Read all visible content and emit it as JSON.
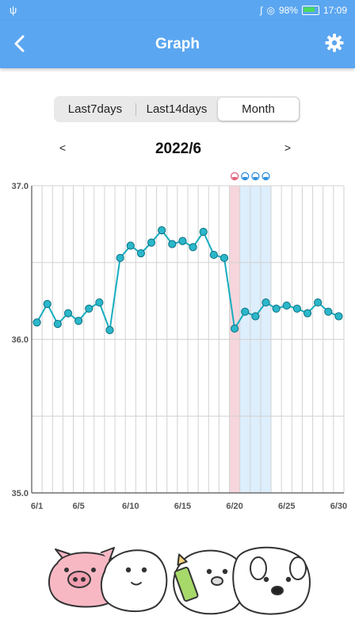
{
  "status_bar": {
    "usb_icon": "usb-icon",
    "battery": "98%",
    "time": "17:09"
  },
  "app_bar": {
    "title": "Graph",
    "back_icon": "back-arrow-icon",
    "settings_icon": "gear-icon"
  },
  "range_selector": {
    "options": [
      "Last7days",
      "Last14days",
      "Month"
    ],
    "selected": "Month"
  },
  "month_nav": {
    "prev": "<",
    "label": "2022/6",
    "next": ">"
  },
  "colors": {
    "line": "#18aebf",
    "marker_fill": "#2bb7ca",
    "period_band": "#f6d6dc",
    "fertile_band": "#ddeefc",
    "accent": "#5ba6f0"
  },
  "chart_data": {
    "type": "line",
    "x": [
      1,
      2,
      3,
      4,
      5,
      6,
      7,
      8,
      9,
      10,
      11,
      12,
      13,
      14,
      15,
      16,
      17,
      18,
      19,
      20,
      21,
      22,
      23,
      24,
      25,
      26,
      27,
      28,
      29,
      30
    ],
    "values": [
      36.11,
      36.23,
      36.1,
      36.17,
      36.12,
      36.2,
      36.24,
      36.06,
      36.53,
      36.61,
      36.56,
      36.63,
      36.71,
      36.62,
      36.64,
      36.6,
      36.7,
      36.55,
      36.53,
      36.07,
      36.18,
      36.15,
      36.24,
      36.2,
      36.22,
      36.2,
      36.17,
      36.24,
      36.18,
      36.15
    ],
    "ylim": [
      35.0,
      37.0
    ],
    "yticks": [
      "35.0",
      "36.0",
      "37.0"
    ],
    "xtick_labels": [
      {
        "day": 1,
        "label": "6/1"
      },
      {
        "day": 5,
        "label": "6/5"
      },
      {
        "day": 10,
        "label": "6/10"
      },
      {
        "day": 15,
        "label": "6/15"
      },
      {
        "day": 20,
        "label": "6/20"
      },
      {
        "day": 25,
        "label": "6/25"
      },
      {
        "day": 30,
        "label": "6/30"
      }
    ],
    "bands": [
      {
        "type": "period",
        "days": [
          20
        ]
      },
      {
        "type": "fertile",
        "days": [
          21,
          22,
          23
        ]
      }
    ],
    "day_icons": [
      {
        "day": 20,
        "icon": "period-drop-icon"
      },
      {
        "day": 21,
        "icon": "water-drop-icon"
      },
      {
        "day": 22,
        "icon": "water-drop-icon"
      },
      {
        "day": 23,
        "icon": "water-drop-icon"
      }
    ],
    "grid": true
  }
}
